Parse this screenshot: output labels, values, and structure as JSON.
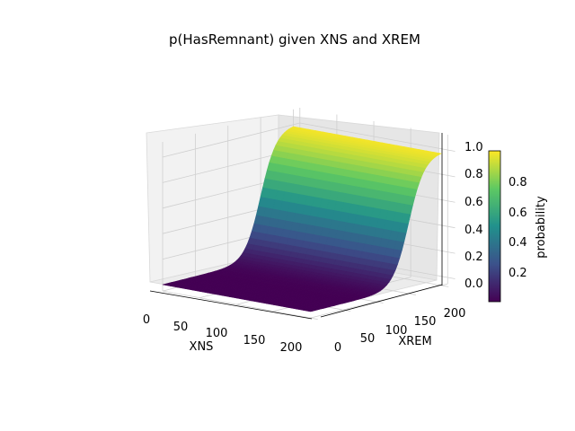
{
  "chart_data": {
    "type": "surface3d",
    "title": "p(HasRemnant) given XNS and XREM",
    "xlabel": "XNS",
    "ylabel": "XREM",
    "colorbar_label": "probability",
    "colormap": "viridis",
    "colormap_stops": [
      "#440154",
      "#3b528b",
      "#21918c",
      "#5ec962",
      "#fde725"
    ],
    "xlim": [
      0,
      210
    ],
    "ylim": [
      0,
      210
    ],
    "zlim": [
      -0.05,
      1.05
    ],
    "x_ticks": [
      "0",
      "50",
      "100",
      "150",
      "200"
    ],
    "y_ticks": [
      "0",
      "50",
      "100",
      "150",
      "200"
    ],
    "z_ticks": [
      "0.0",
      "0.2",
      "0.4",
      "0.6",
      "0.8",
      "1.0"
    ],
    "colorbar_ticks": [
      "0.2",
      "0.4",
      "0.6",
      "0.8"
    ],
    "colorbar_range": [
      0,
      1
    ],
    "surface": {
      "function": "logistic in XREM; independent of XNS",
      "xrem_midpoint": 150,
      "xrem_scale": 12,
      "xns_range": [
        0,
        200
      ],
      "xrem_range": [
        0,
        200
      ]
    },
    "grid": true
  }
}
